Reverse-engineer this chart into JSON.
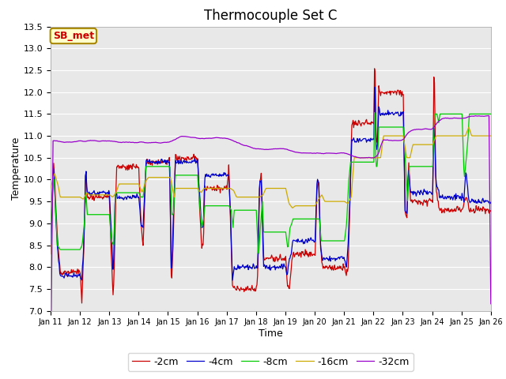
{
  "title": "Thermocouple Set C",
  "xlabel": "Time",
  "ylabel": "Temperature",
  "ylim": [
    7.0,
    13.5
  ],
  "yticks": [
    7.0,
    7.5,
    8.0,
    8.5,
    9.0,
    9.5,
    10.0,
    10.5,
    11.0,
    11.5,
    12.0,
    12.5,
    13.0,
    13.5
  ],
  "xtick_labels": [
    "Jan 11",
    "Jan 12",
    "Jan 13",
    "Jan 14",
    "Jan 15",
    "Jan 16",
    "Jan 17",
    "Jan 18",
    "Jan 19",
    "Jan 20",
    "Jan 21",
    "Jan 22",
    "Jan 23",
    "Jan 24",
    "Jan 25",
    "Jan 26"
  ],
  "series_labels": [
    "-2cm",
    "-4cm",
    "-8cm",
    "-16cm",
    "-32cm"
  ],
  "series_colors": [
    "#cc0000",
    "#0000cc",
    "#00cc00",
    "#ccaa00",
    "#9900cc"
  ],
  "legend_label": "SB_met",
  "legend_label_color": "#cc0000",
  "legend_box_facecolor": "#ffffcc",
  "legend_box_edgecolor": "#aa8800",
  "fig_facecolor": "#ffffff",
  "ax_facecolor": "#e8e8e8",
  "grid_color": "#ffffff",
  "title_fontsize": 12,
  "axis_label_fontsize": 9,
  "tick_fontsize": 8
}
